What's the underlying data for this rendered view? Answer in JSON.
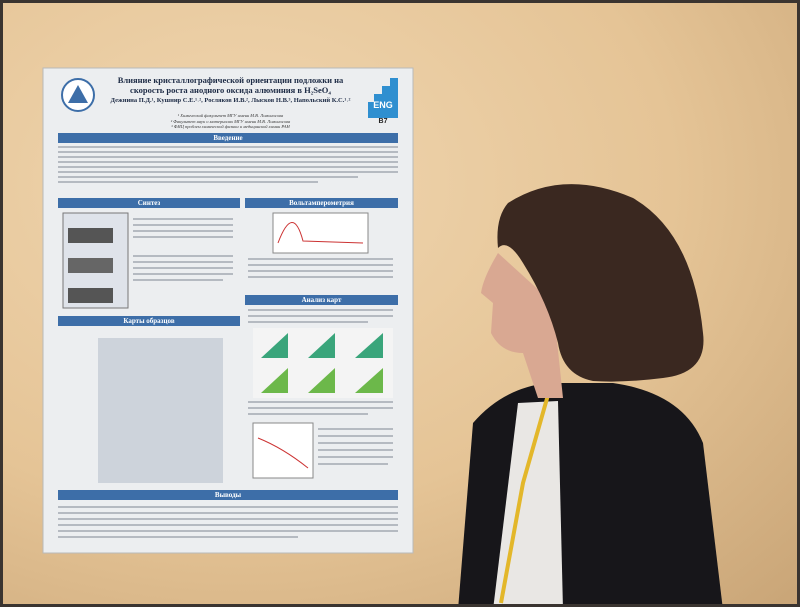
{
  "poster": {
    "title": "Влияние кристаллографической ориентации подложки на скорость роста анодного оксида алюминия в H₂SeO₄",
    "authors": "Дежнина П.Д.¹, Кушнир С.Е.¹˒², Росляков И.В.², Лысков Н.В.³, Напольский К.С.¹˒²",
    "affiliations": [
      "¹ Химический факультет МГУ имени М.В. Ломоносова",
      "² Факультет наук о материалах МГУ имени М.В. Ломоносова",
      "³ ФИЦ проблем химической физики и медицинской химии РАН"
    ],
    "badge": "ENG",
    "code": "B7",
    "sections": [
      "Введение",
      "Синтез",
      "Вольтамперометрия",
      "Карты образцов",
      "Анализ карт",
      "Выводы"
    ]
  }
}
